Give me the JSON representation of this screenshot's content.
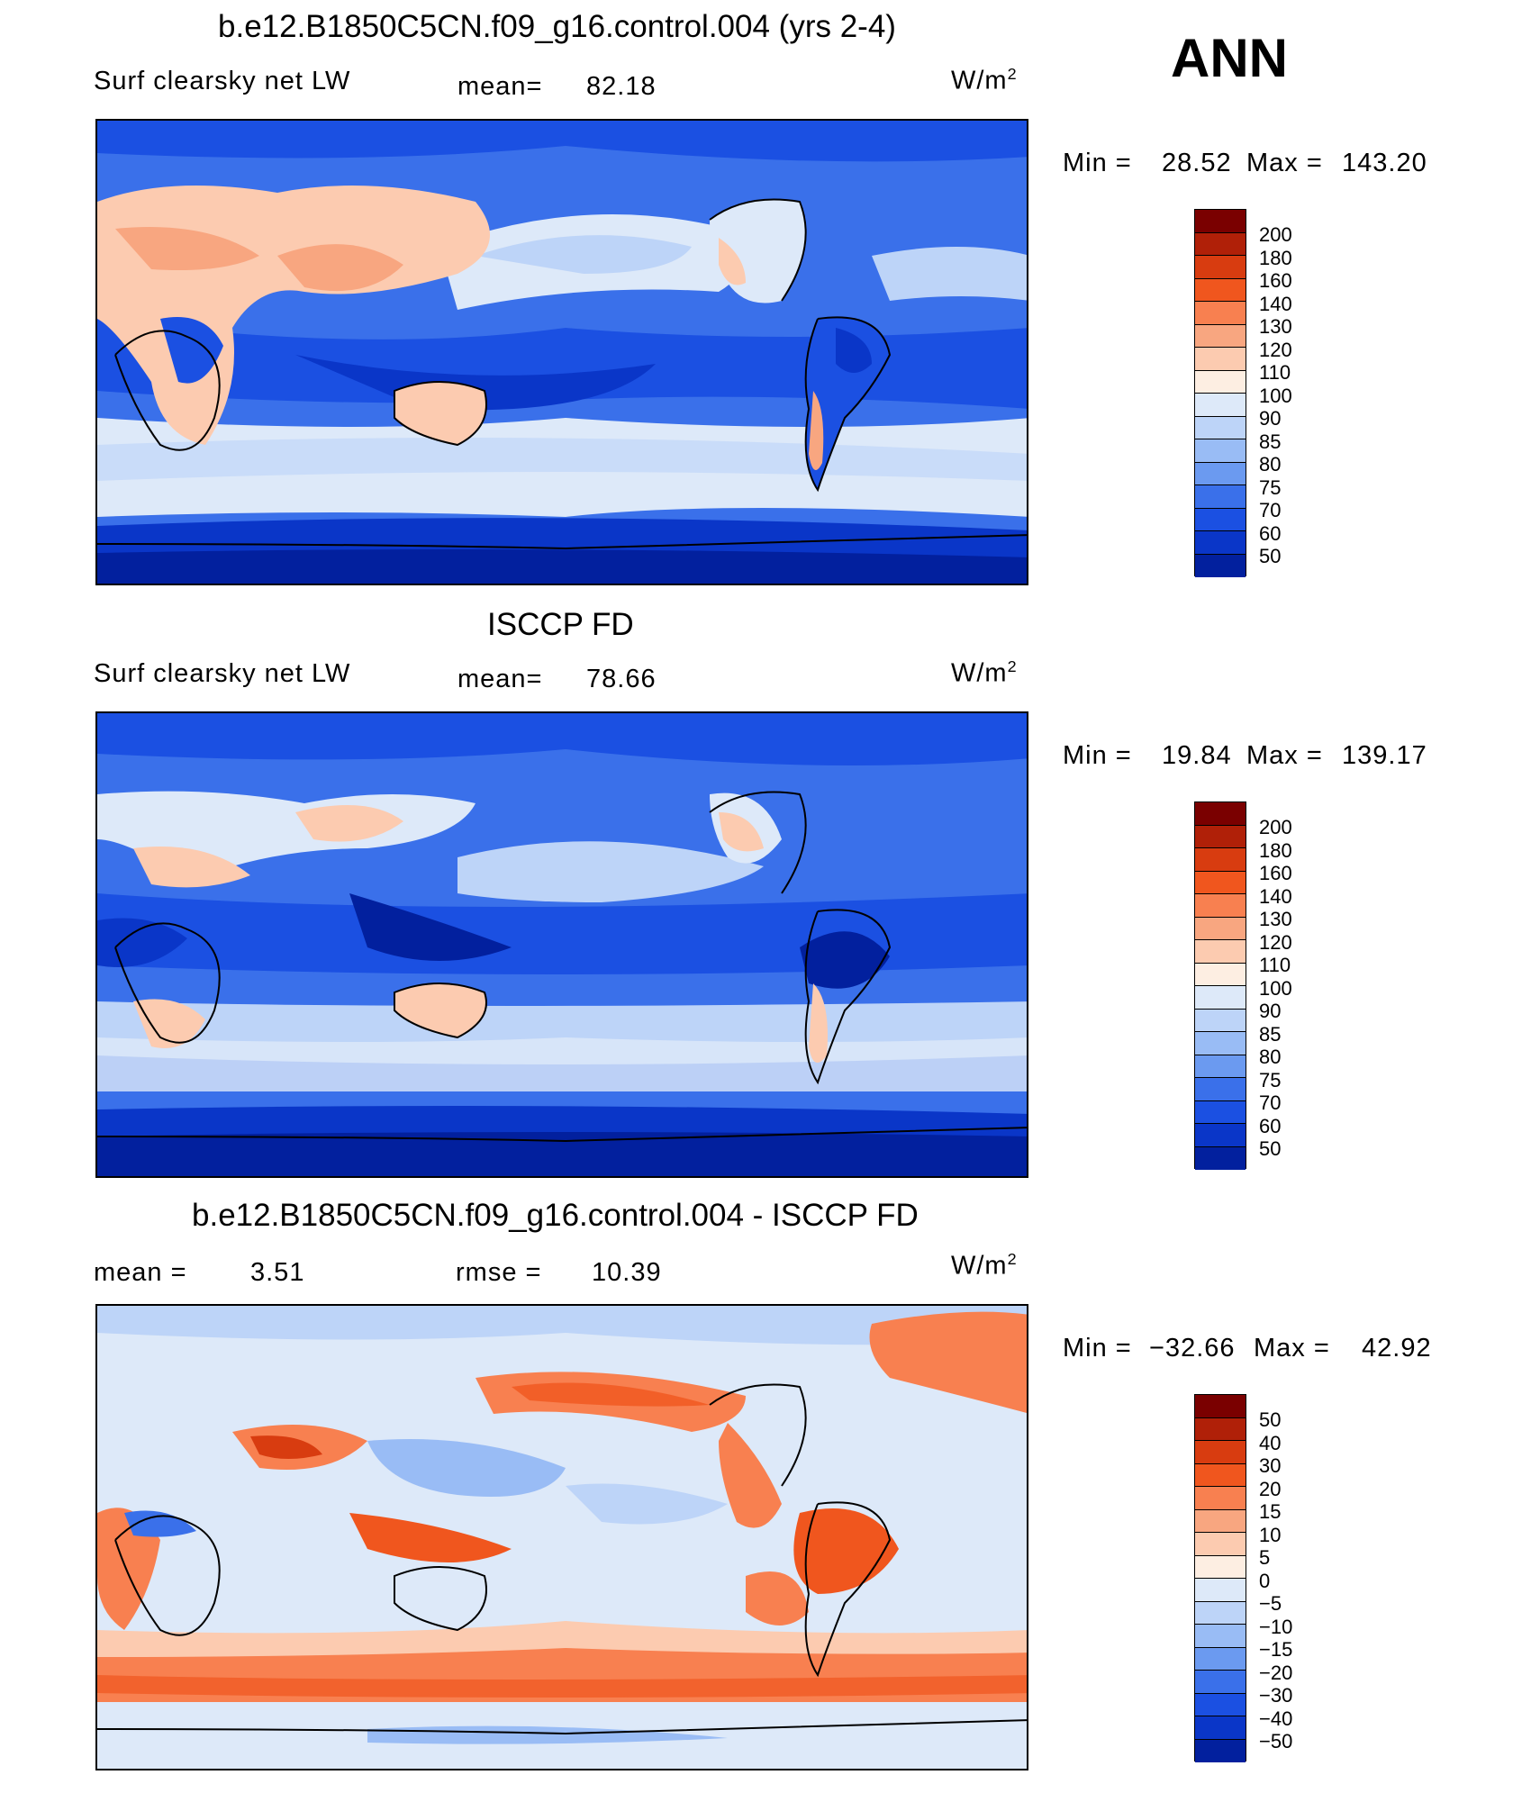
{
  "season": "ANN",
  "palette_abs": [
    "#7a0000",
    "#b02008",
    "#d83c10",
    "#f0561e",
    "#f88050",
    "#f8a680",
    "#fccbb0",
    "#fdeee2",
    "#dde9f9",
    "#bdd4f8",
    "#99bcf5",
    "#6b9af0",
    "#3a70ea",
    "#1b50e2",
    "#0a36c8",
    "#02209e"
  ],
  "palette_diff": [
    "#7a0000",
    "#b02008",
    "#d83c10",
    "#f0561e",
    "#f88050",
    "#f8a680",
    "#fccbb0",
    "#fdeee2",
    "#dde9f9",
    "#bdd4f8",
    "#99bcf5",
    "#6b9af0",
    "#3a70ea",
    "#1b50e2",
    "#0a36c8",
    "#02209e"
  ],
  "panels": [
    {
      "title": "b.e12.B1850C5CN.f09_g16.control.004 (yrs 2-4)",
      "left_label": "Surf  clearsky  net  LW",
      "stat_label": "mean=",
      "stat_value": "82.18",
      "unit": "W/m",
      "unit_sup": "2",
      "min_label": "Min  =",
      "min_value": "28.52",
      "max_label": "Max  =",
      "max_value": "143.20",
      "levels": [
        "200",
        "180",
        "160",
        "140",
        "130",
        "120",
        "110",
        "100",
        "90",
        "85",
        "80",
        "75",
        "70",
        "60",
        "50"
      ]
    },
    {
      "title": "ISCCP FD",
      "left_label": "Surf  clearsky  net  LW",
      "stat_label": "mean=",
      "stat_value": "78.66",
      "unit": "W/m",
      "unit_sup": "2",
      "min_label": "Min  =",
      "min_value": "19.84",
      "max_label": "Max  =",
      "max_value": "139.17",
      "levels": [
        "200",
        "180",
        "160",
        "140",
        "130",
        "120",
        "110",
        "100",
        "90",
        "85",
        "80",
        "75",
        "70",
        "60",
        "50"
      ]
    },
    {
      "title": "b.e12.B1850C5CN.f09_g16.control.004 - ISCCP FD",
      "stat1_label": "mean  =",
      "stat1_value": "3.51",
      "stat2_label": "rmse  =",
      "stat2_value": "10.39",
      "unit": "W/m",
      "unit_sup": "2",
      "min_label": "Min  =",
      "min_value": "−32.66",
      "max_label": "Max  =",
      "max_value": "42.92",
      "levels": [
        "50",
        "40",
        "30",
        "20",
        "15",
        "10",
        "5",
        "0",
        "−5",
        "−10",
        "−15",
        "−20",
        "−30",
        "−40",
        "−50"
      ]
    }
  ]
}
